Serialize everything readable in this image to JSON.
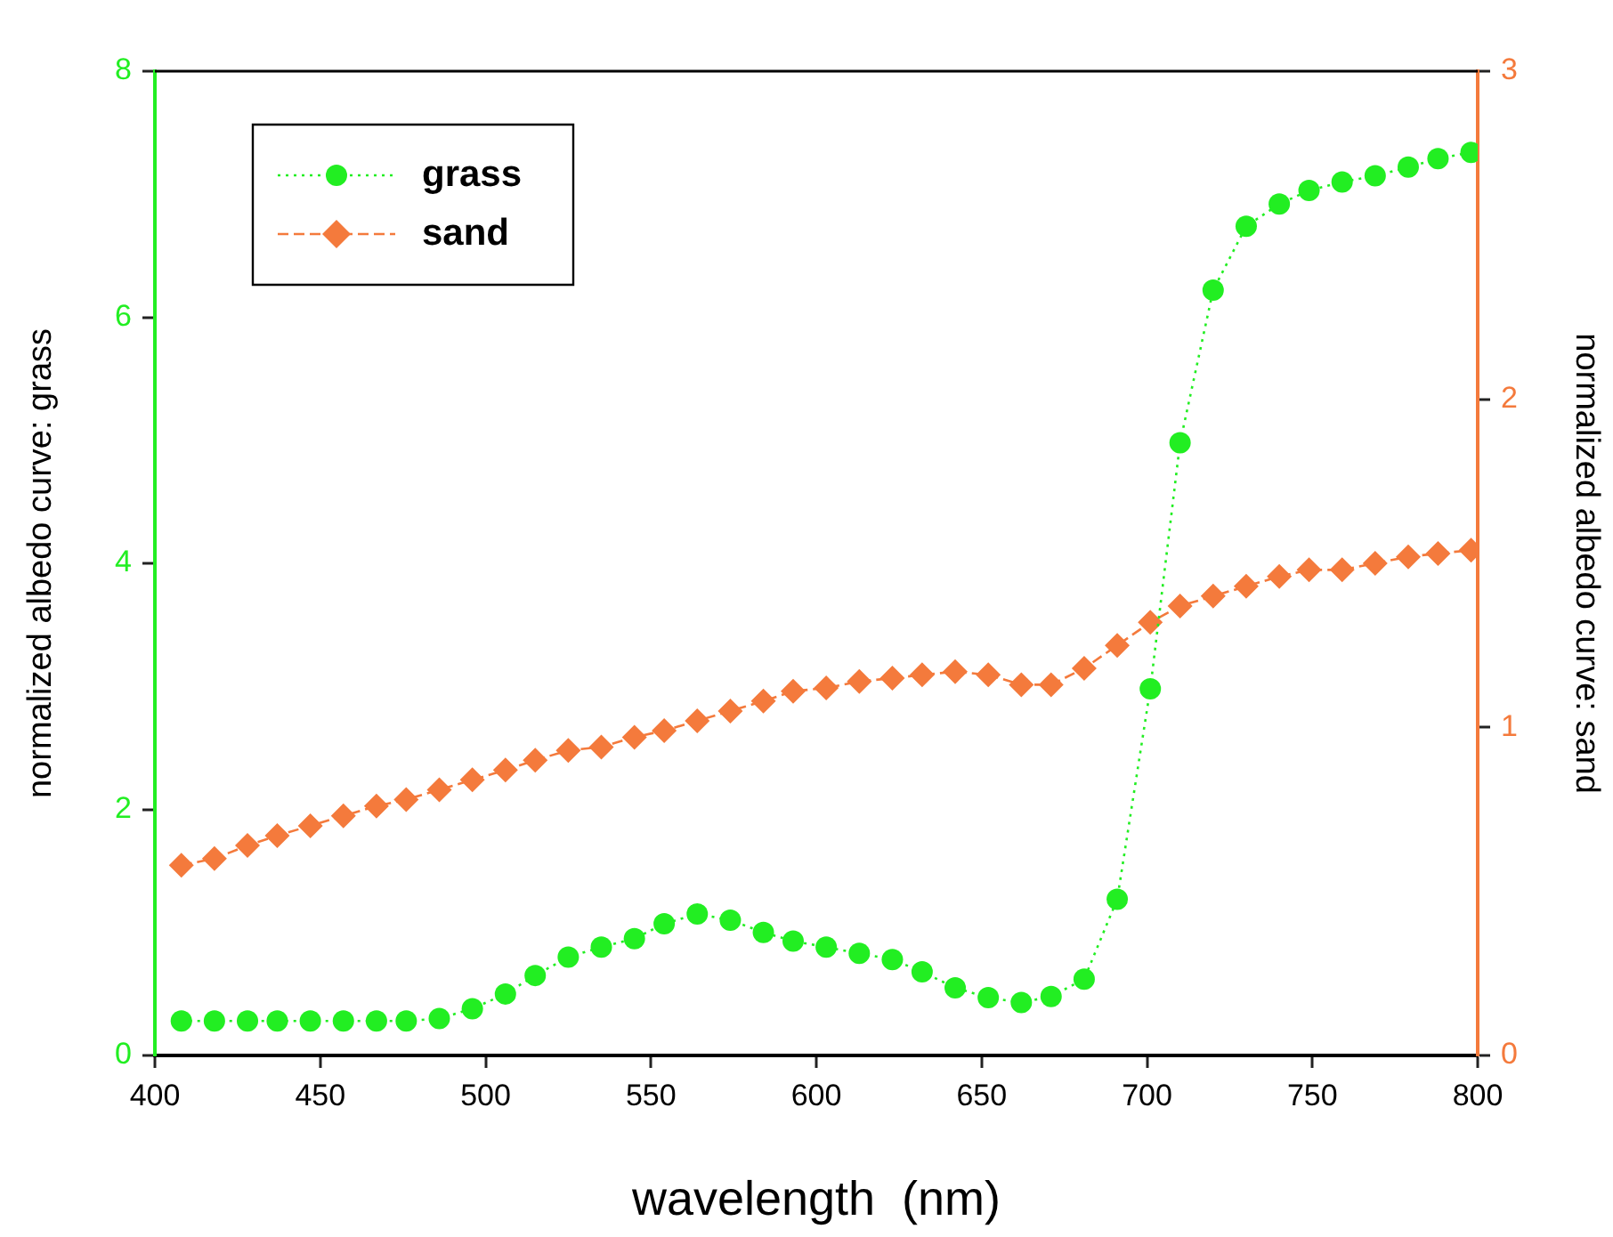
{
  "chart_data": {
    "type": "line",
    "xlabel": "wavelength  (nm)",
    "ylabel": "normalized albedo curve: grass",
    "y2label": "normalized albedo curve: sand",
    "x": [
      408,
      418,
      428,
      437,
      447,
      457,
      467,
      476,
      486,
      496,
      506,
      515,
      525,
      535,
      545,
      554,
      564,
      574,
      584,
      593,
      603,
      613,
      623,
      632,
      642,
      652,
      662,
      671,
      681,
      691,
      701,
      710,
      720,
      730,
      740,
      749,
      759,
      769,
      779,
      788,
      798
    ],
    "xlim": [
      400,
      800
    ],
    "xticks": [
      400,
      450,
      500,
      550,
      600,
      650,
      700,
      750,
      800
    ],
    "ylim": [
      0,
      8
    ],
    "yticks": [
      0,
      2,
      4,
      6,
      8
    ],
    "y2lim": [
      0,
      3
    ],
    "y2ticks": [
      0,
      1,
      2,
      3
    ],
    "grid": false,
    "legend": "top left",
    "series": [
      {
        "name": "grass",
        "color": "#22ee22",
        "marker": "circle",
        "line_style": "dotted",
        "values": [
          0.28,
          0.28,
          0.28,
          0.28,
          0.28,
          0.28,
          0.28,
          0.28,
          0.3,
          0.38,
          0.5,
          0.65,
          0.8,
          0.88,
          0.95,
          1.07,
          1.15,
          1.1,
          1.0,
          0.93,
          0.88,
          0.83,
          0.78,
          0.68,
          0.55,
          0.47,
          0.43,
          0.48,
          0.62,
          1.27,
          2.98,
          4.98,
          6.22,
          6.74,
          6.92,
          7.03,
          7.1,
          7.15,
          7.22,
          7.29,
          7.34
        ]
      },
      {
        "name": "sand",
        "color": "#f47a3c",
        "marker": "diamond",
        "line_style": "dashed",
        "axis": "y2",
        "values": [
          0.58,
          0.6,
          0.64,
          0.67,
          0.7,
          0.73,
          0.76,
          0.78,
          0.81,
          0.84,
          0.87,
          0.9,
          0.93,
          0.94,
          0.97,
          0.99,
          1.02,
          1.05,
          1.08,
          1.11,
          1.12,
          1.14,
          1.15,
          1.16,
          1.17,
          1.16,
          1.13,
          1.13,
          1.18,
          1.25,
          1.32,
          1.37,
          1.4,
          1.43,
          1.46,
          1.48,
          1.48,
          1.5,
          1.52,
          1.53,
          1.54
        ]
      }
    ]
  }
}
